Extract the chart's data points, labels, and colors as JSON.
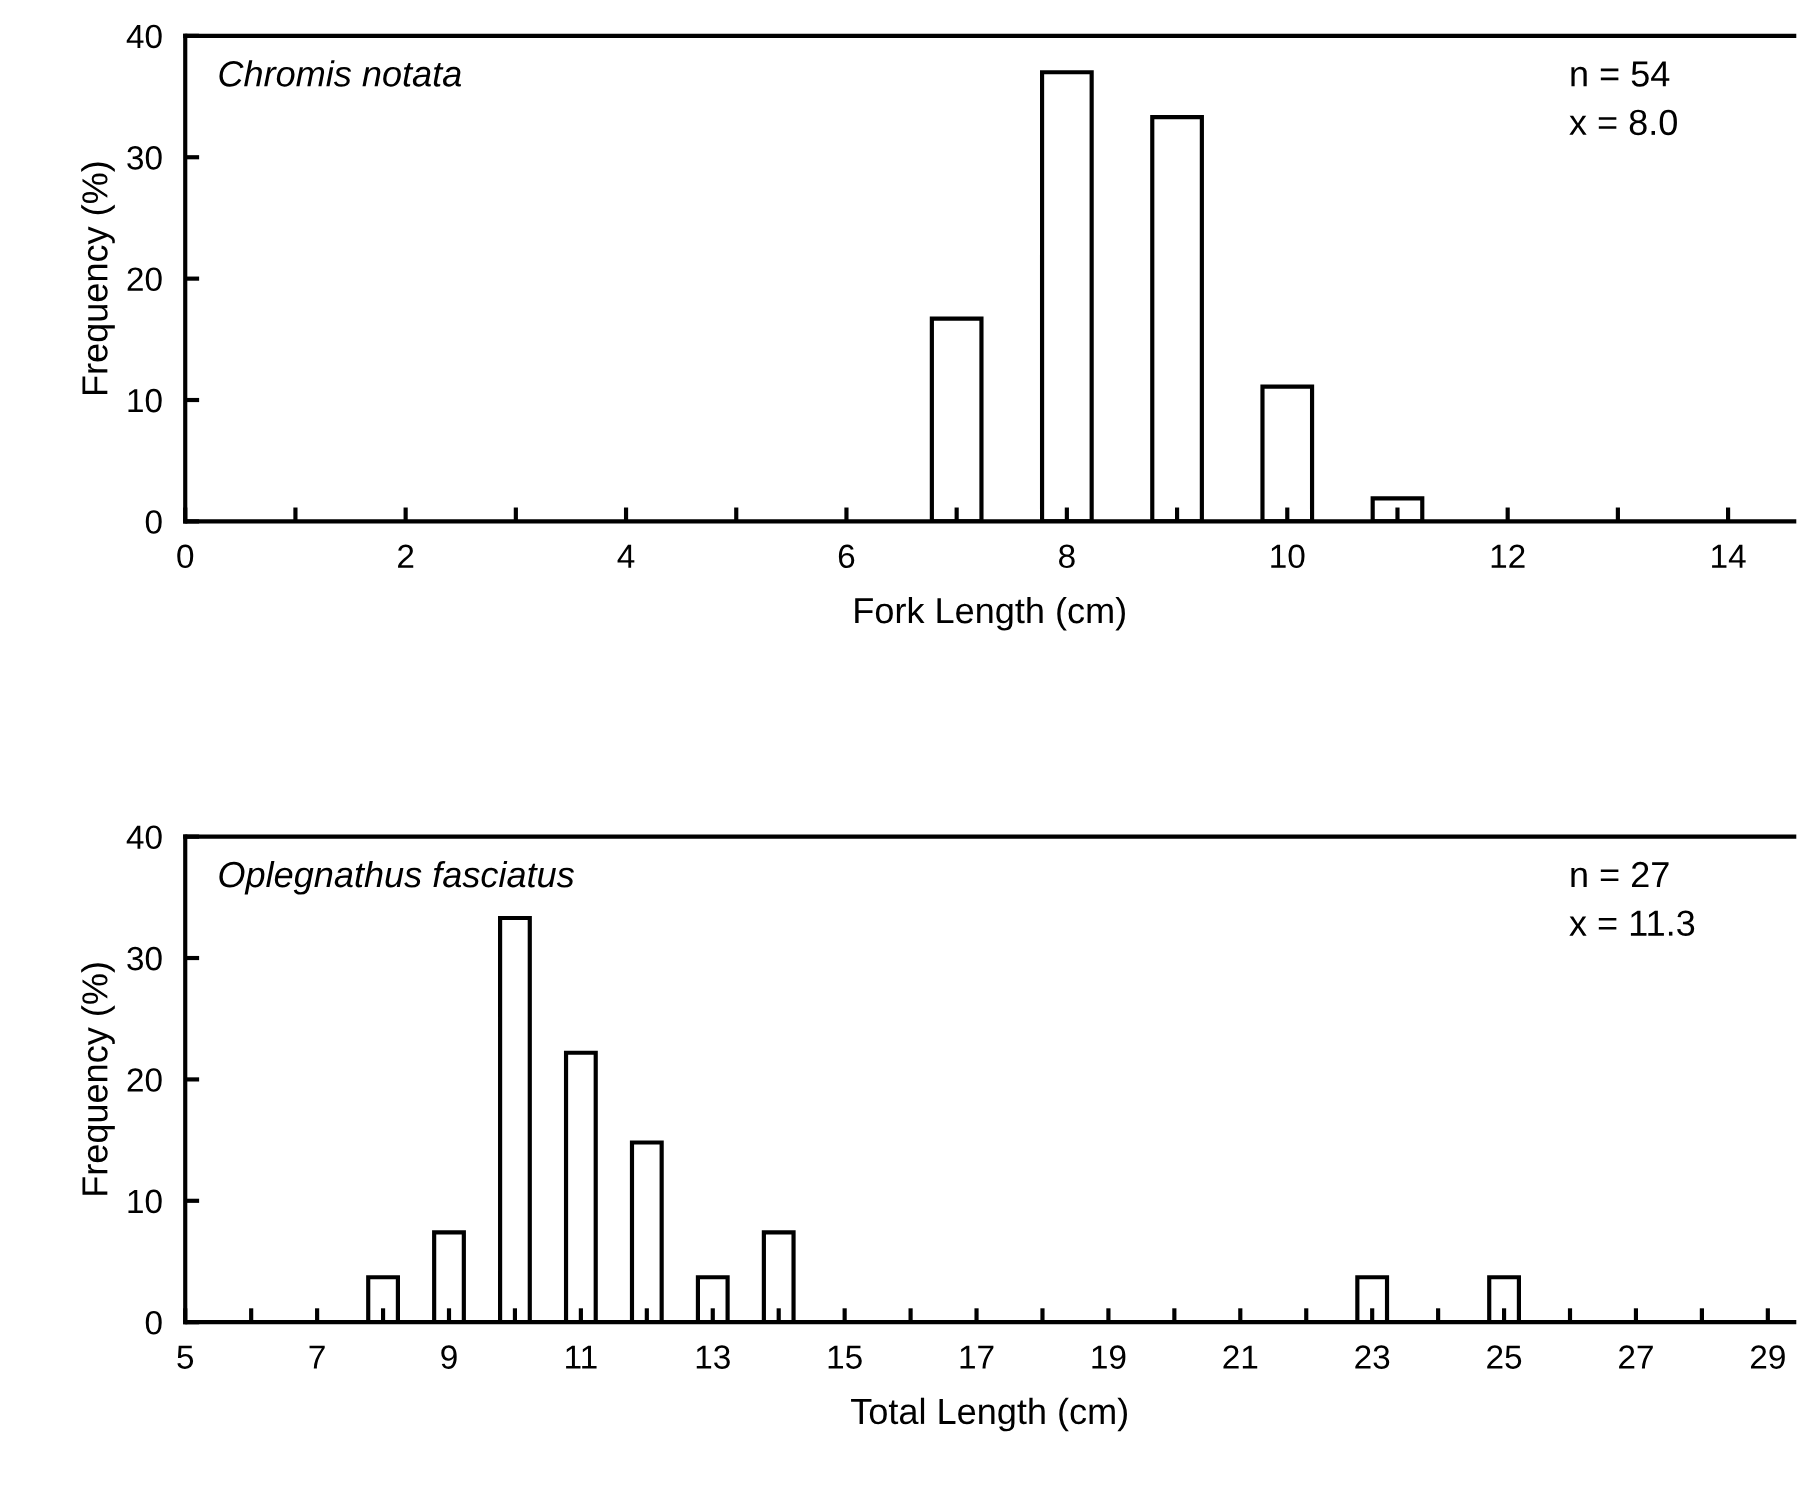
{
  "chart_data": [
    {
      "type": "bar",
      "x": [
        7,
        8,
        9,
        10,
        11
      ],
      "values": [
        16.7,
        37.0,
        33.3,
        11.1,
        1.9
      ],
      "color": "#ffffff",
      "xlabel": "Fork Length (cm)",
      "ylabel": "Frequency (%)",
      "xlim": [
        0,
        14.6
      ],
      "ylim": [
        0,
        40
      ],
      "xticks": [
        0,
        {
          "value": 1,
          "label": null
        },
        2,
        {
          "value": 3,
          "label": null
        },
        4,
        {
          "value": 5,
          "label": null
        },
        6,
        {
          "value": 7,
          "label": null
        },
        8,
        {
          "value": 9,
          "label": null
        },
        10,
        {
          "value": 11,
          "label": null
        },
        12,
        {
          "value": 13,
          "label": null
        },
        14
      ],
      "yticks": [
        0,
        10,
        20,
        30,
        40
      ],
      "annotations": [
        "Chromis notata",
        "n = 54",
        "x = 8.0"
      ],
      "grid": false,
      "legend": false
    },
    {
      "type": "bar",
      "x": [
        8,
        9,
        10,
        11,
        12,
        13,
        14,
        23,
        25
      ],
      "values": [
        3.7,
        7.4,
        33.3,
        22.2,
        14.8,
        3.7,
        7.4,
        3.7,
        3.7
      ],
      "color": "#ffffff",
      "xlabel": "Total Length (cm)",
      "ylabel": "Frequency (%)",
      "xlim": [
        5,
        29.4
      ],
      "ylim": [
        0,
        40
      ],
      "xticks": [
        5,
        {
          "value": 6,
          "label": null
        },
        7,
        {
          "value": 8,
          "label": null
        },
        9,
        {
          "value": 10,
          "label": null
        },
        11,
        {
          "value": 12,
          "label": null
        },
        13,
        {
          "value": 14,
          "label": null
        },
        15,
        {
          "value": 16,
          "label": null
        },
        17,
        {
          "value": 18,
          "label": null
        },
        19,
        {
          "value": 20,
          "label": null
        },
        21,
        {
          "value": 22,
          "label": null
        },
        23,
        {
          "value": 24,
          "label": null
        },
        25,
        {
          "value": 26,
          "label": null
        },
        27,
        {
          "value": 28,
          "label": null
        },
        29
      ],
      "yticks": [
        0,
        10,
        20,
        30,
        40
      ],
      "annotations": [
        "Oplegnathus fasciatus",
        "n = 27",
        "x = 11.3"
      ],
      "grid": false,
      "legend": false
    }
  ]
}
